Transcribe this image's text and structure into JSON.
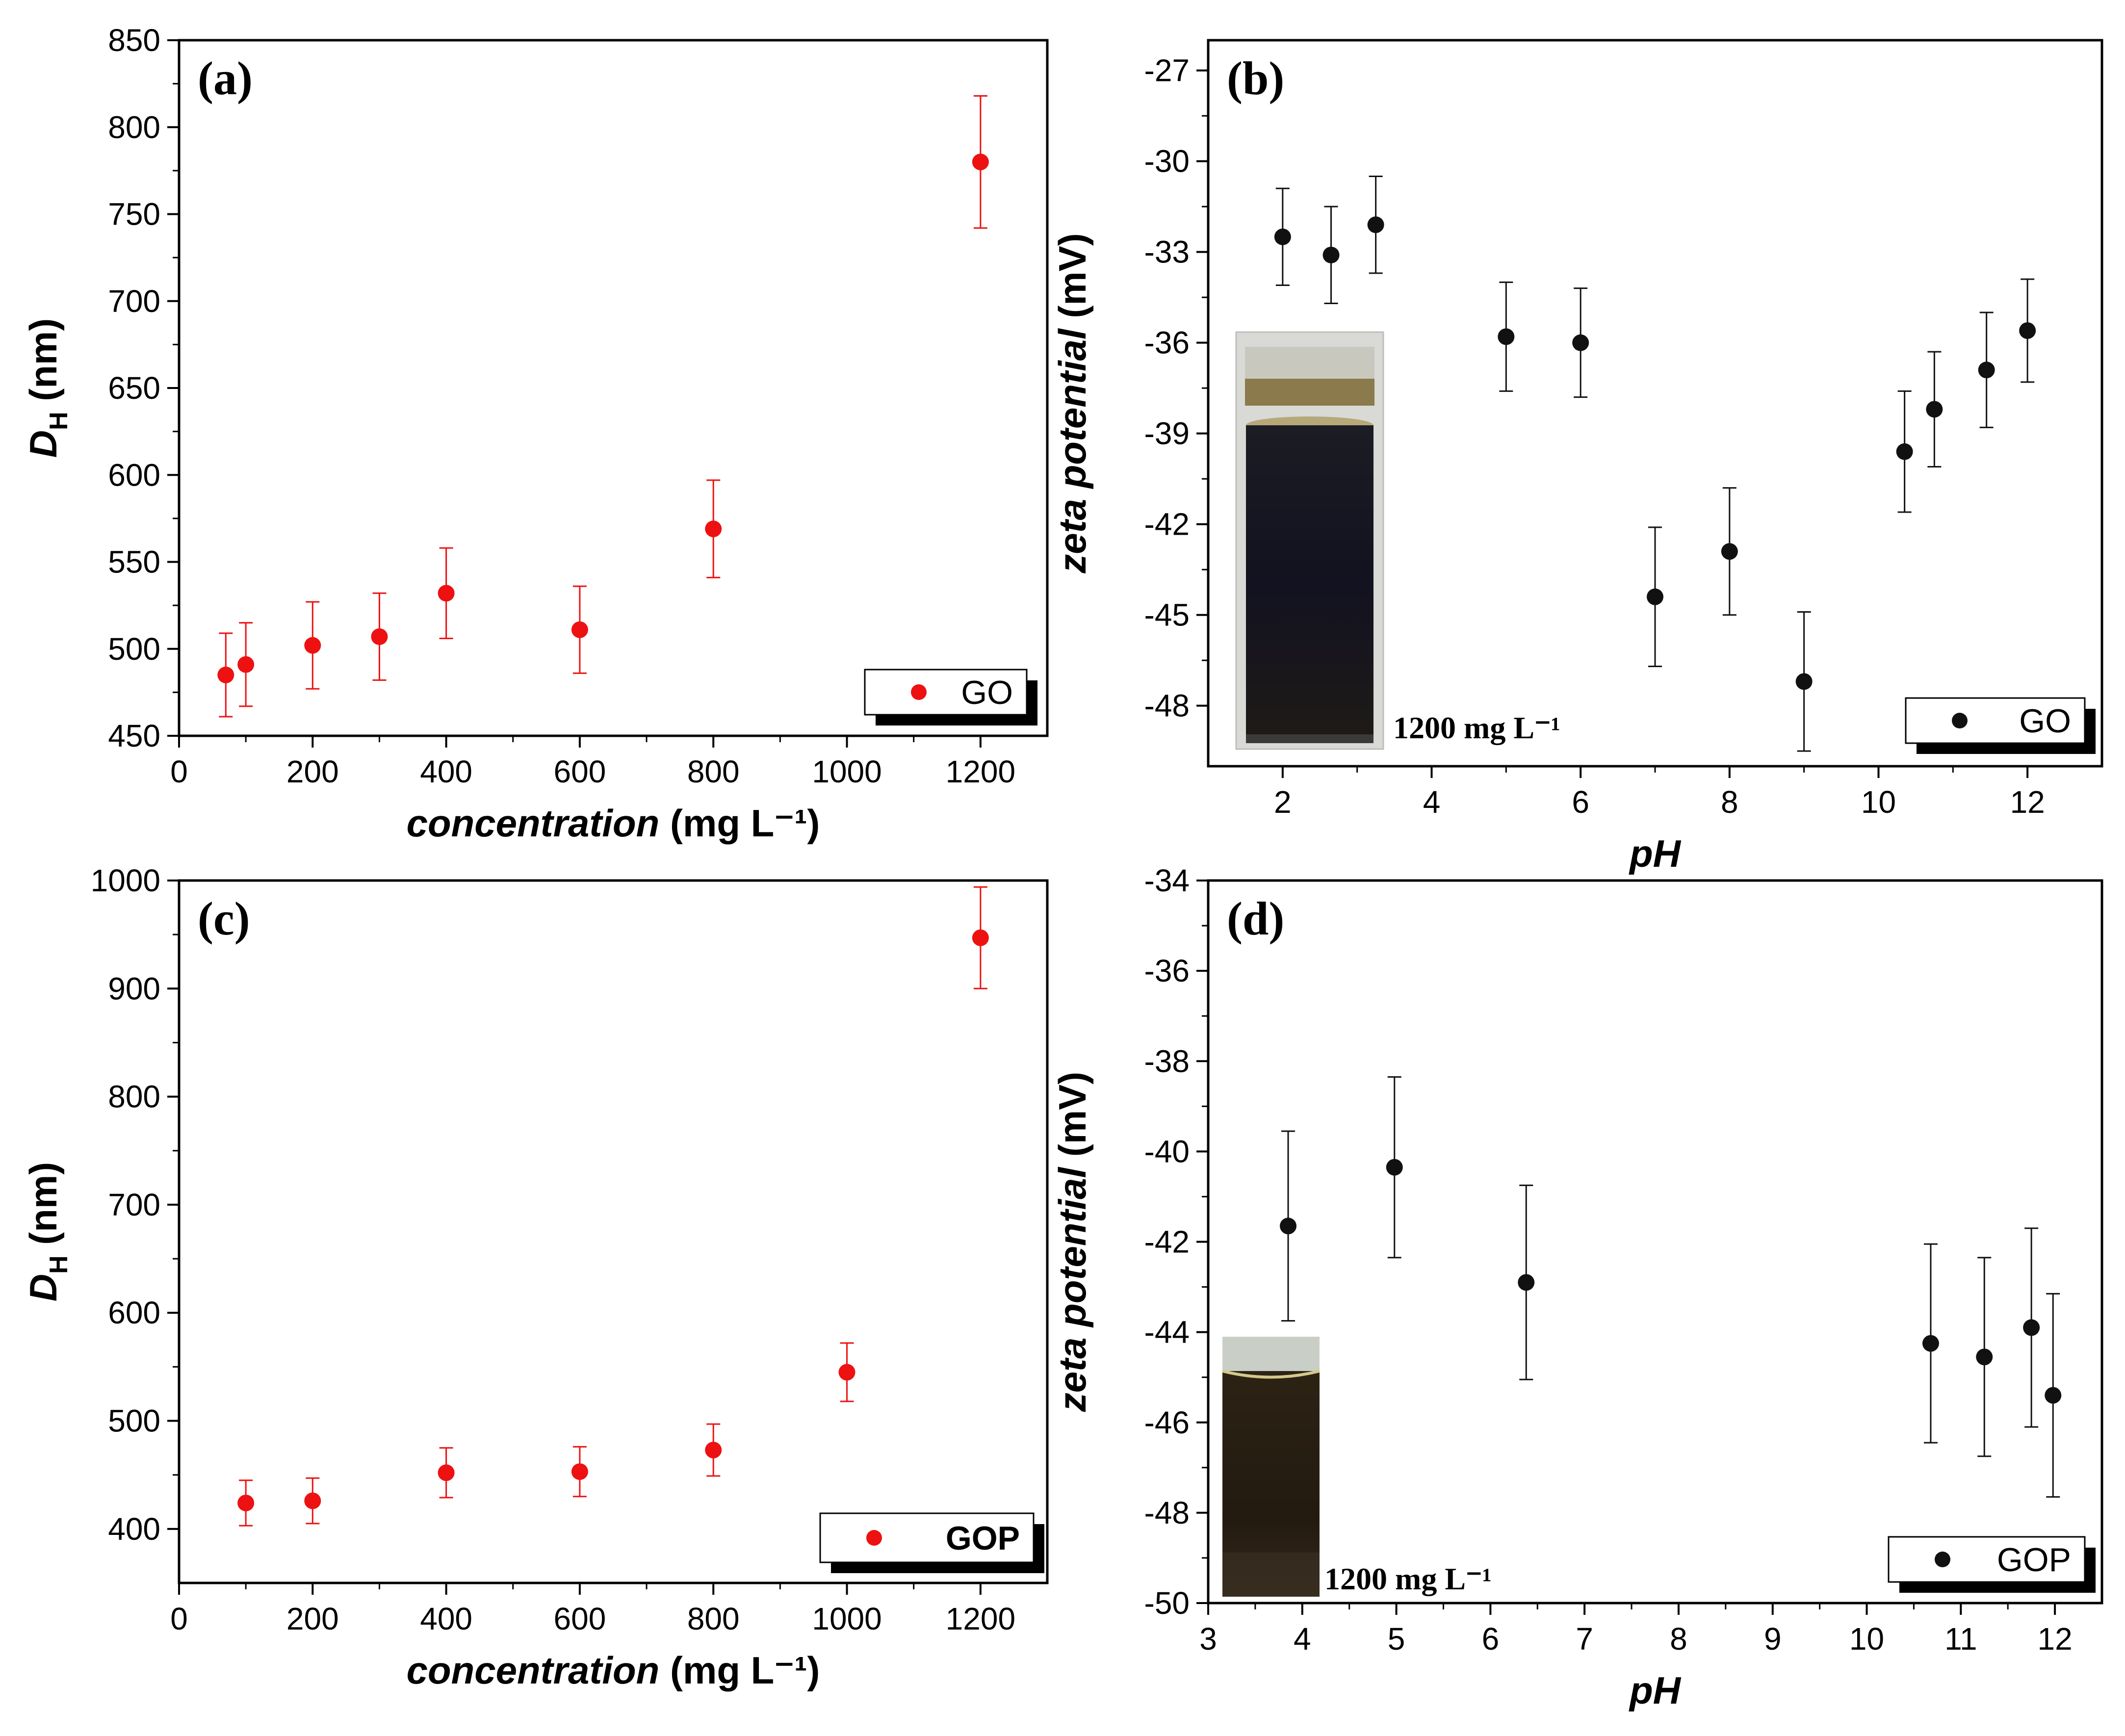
{
  "figure_caption": "",
  "chart_data": [
    {
      "panel": "(a)",
      "type": "scatter",
      "x": [
        70,
        100,
        200,
        300,
        400,
        600,
        800,
        1200
      ],
      "y": [
        485,
        491,
        502,
        507,
        532,
        511,
        569,
        780
      ],
      "err": [
        24,
        24,
        25,
        25,
        26,
        25,
        28,
        38
      ],
      "xlim": [
        0,
        1300
      ],
      "ylim": [
        450,
        850
      ],
      "xticks": [
        0,
        200,
        400,
        600,
        800,
        1000,
        1200
      ],
      "yticks": [
        450,
        500,
        550,
        600,
        650,
        700,
        750,
        800,
        850
      ],
      "xlabel": "concentration",
      "xunit": " (mg L⁻¹)",
      "ylabel_sym": "D",
      "ylabel_sub": "H",
      "ylabel_unit": " (nm)",
      "legend": "GO",
      "color": "#ee1111"
    },
    {
      "panel": "(b)",
      "type": "scatter",
      "x": [
        2.0,
        2.65,
        3.25,
        5.0,
        6.0,
        7.0,
        8.0,
        9.0,
        10.35,
        10.75,
        11.45,
        12.0
      ],
      "y": [
        -32.5,
        -33.1,
        -32.1,
        -35.8,
        -36.0,
        -44.4,
        -42.9,
        -47.2,
        -39.6,
        -38.2,
        -36.9,
        -35.6
      ],
      "err": [
        1.6,
        1.6,
        1.6,
        1.8,
        1.8,
        2.3,
        2.1,
        2.3,
        2.0,
        1.9,
        1.9,
        1.7
      ],
      "xlim": [
        1,
        13
      ],
      "ylim": [
        -50,
        -26
      ],
      "xticks": [
        2,
        4,
        6,
        8,
        10,
        12
      ],
      "yticks": [
        -27,
        -30,
        -33,
        -36,
        -39,
        -42,
        -45,
        -48
      ],
      "xlabel": "pH",
      "ylabel": "zeta potential",
      "ylabel_unit": " (mV)",
      "legend": "GO",
      "color": "#111111",
      "inset_label": "1200 mg L⁻¹"
    },
    {
      "panel": "(c)",
      "type": "scatter",
      "x": [
        100,
        200,
        400,
        600,
        800,
        1000,
        1200
      ],
      "y": [
        424,
        426,
        452,
        453,
        473,
        545,
        947
      ],
      "err": [
        21,
        21,
        23,
        23,
        24,
        27,
        47
      ],
      "xlim": [
        0,
        1300
      ],
      "ylim": [
        350,
        1000
      ],
      "xticks": [
        0,
        200,
        400,
        600,
        800,
        1000,
        1200
      ],
      "yticks": [
        400,
        500,
        600,
        700,
        800,
        900,
        1000
      ],
      "xlabel": "concentration",
      "xunit": " (mg L⁻¹)",
      "ylabel_sym": "D",
      "ylabel_sub": "H",
      "ylabel_unit": " (nm)",
      "legend": "GOP",
      "color": "#ee1111"
    },
    {
      "panel": "(d)",
      "type": "scatter",
      "x": [
        3.85,
        4.98,
        6.38,
        10.68,
        11.25,
        11.75,
        11.98
      ],
      "y": [
        -41.65,
        -40.35,
        -42.9,
        -44.25,
        -44.55,
        -43.9,
        -45.4
      ],
      "err": [
        2.1,
        2.0,
        2.15,
        2.2,
        2.2,
        2.2,
        2.25
      ],
      "xlim": [
        3,
        12.5
      ],
      "ylim": [
        -50,
        -34
      ],
      "xticks": [
        3,
        4,
        5,
        6,
        7,
        8,
        9,
        10,
        11,
        12
      ],
      "yticks": [
        -34,
        -36,
        -38,
        -40,
        -42,
        -44,
        -46,
        -48,
        -50
      ],
      "xlabel": "pH",
      "ylabel": "zeta potential",
      "ylabel_unit": " (mV)",
      "legend": "GOP",
      "color": "#111111",
      "inset_label": "1200 mg L⁻¹"
    }
  ]
}
